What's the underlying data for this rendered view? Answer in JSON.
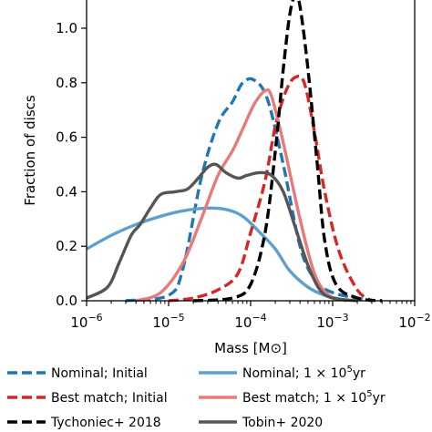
{
  "chart_data": {
    "type": "line",
    "xscale": "log",
    "xlabel": "Mass [M⊙]",
    "ylabel": "Fraction of discs",
    "xlim": [
      1e-06,
      0.01
    ],
    "ylim": [
      0,
      1.1
    ],
    "x_ticks": [
      {
        "value": 1e-06,
        "base": "10",
        "exp": "−6"
      },
      {
        "value": 1e-05,
        "base": "10",
        "exp": "−5"
      },
      {
        "value": 0.0001,
        "base": "10",
        "exp": "−4"
      },
      {
        "value": 0.001,
        "base": "10",
        "exp": "−3"
      },
      {
        "value": 0.01,
        "base": "10",
        "exp": "−2"
      }
    ],
    "y_ticks": [
      {
        "value": 0.0,
        "label": "0.0"
      },
      {
        "value": 0.2,
        "label": "0.2"
      },
      {
        "value": 0.4,
        "label": "0.4"
      },
      {
        "value": 0.6,
        "label": "0.6"
      },
      {
        "value": 0.8,
        "label": "0.8"
      },
      {
        "value": 1.0,
        "label": "1.0"
      }
    ],
    "series": [
      {
        "name": "Nominal; Initial",
        "color": "#1f77b4",
        "style": "dashed",
        "points": [
          [
            3e-06,
            0.0
          ],
          [
            1e-05,
            0.02
          ],
          [
            1.5e-05,
            0.12
          ],
          [
            2.5e-05,
            0.45
          ],
          [
            4e-05,
            0.65
          ],
          [
            6e-05,
            0.73
          ],
          [
            8e-05,
            0.8
          ],
          [
            0.00011,
            0.81
          ],
          [
            0.00016,
            0.74
          ],
          [
            0.00025,
            0.5
          ],
          [
            0.0004,
            0.2
          ],
          [
            0.0006,
            0.08
          ],
          [
            0.001,
            0.03
          ],
          [
            0.003,
            0.0
          ]
        ]
      },
      {
        "name": "Nominal; 1 × 10^5yr",
        "color": "#5da0d0",
        "style": "solid",
        "points": [
          [
            1e-06,
            0.19
          ],
          [
            2e-06,
            0.24
          ],
          [
            4e-06,
            0.28
          ],
          [
            8e-06,
            0.31
          ],
          [
            1.5e-05,
            0.33
          ],
          [
            3e-05,
            0.34
          ],
          [
            5e-05,
            0.335
          ],
          [
            8e-05,
            0.31
          ],
          [
            0.00013,
            0.25
          ],
          [
            0.0002,
            0.19
          ],
          [
            0.0003,
            0.11
          ],
          [
            0.0005,
            0.05
          ],
          [
            0.0008,
            0.02
          ],
          [
            0.0015,
            0.0
          ]
        ]
      },
      {
        "name": "Best match; Initial",
        "color": "#d62728",
        "style": "dashed",
        "points": [
          [
            1e-05,
            0.0
          ],
          [
            2e-05,
            0.01
          ],
          [
            4e-05,
            0.04
          ],
          [
            7e-05,
            0.1
          ],
          [
            0.0001,
            0.25
          ],
          [
            0.00015,
            0.44
          ],
          [
            0.0002,
            0.64
          ],
          [
            0.00027,
            0.77
          ],
          [
            0.00035,
            0.82
          ],
          [
            0.00045,
            0.8
          ],
          [
            0.0006,
            0.62
          ],
          [
            0.0008,
            0.4
          ],
          [
            0.0012,
            0.18
          ],
          [
            0.002,
            0.04
          ],
          [
            0.003,
            0.0
          ]
        ]
      },
      {
        "name": "Best match; 1 × 10^5yr",
        "color": "#e87a7a",
        "style": "solid",
        "points": [
          [
            4e-06,
            0.0
          ],
          [
            8e-06,
            0.03
          ],
          [
            1.5e-05,
            0.14
          ],
          [
            2.5e-05,
            0.3
          ],
          [
            4e-05,
            0.46
          ],
          [
            6e-05,
            0.55
          ],
          [
            8e-05,
            0.63
          ],
          [
            0.00011,
            0.72
          ],
          [
            0.00015,
            0.77
          ],
          [
            0.00018,
            0.75
          ],
          [
            0.00025,
            0.58
          ],
          [
            0.0004,
            0.3
          ],
          [
            0.0006,
            0.1
          ],
          [
            0.0009,
            0.02
          ],
          [
            0.0015,
            0.0
          ]
        ]
      },
      {
        "name": "Tychoniec+ 2018",
        "color": "#000000",
        "style": "dashed",
        "points": [
          [
            2e-05,
            0.0
          ],
          [
            6e-05,
            0.01
          ],
          [
            0.0001,
            0.06
          ],
          [
            0.00015,
            0.25
          ],
          [
            0.0002,
            0.55
          ],
          [
            0.00025,
            0.85
          ],
          [
            0.0003,
            1.05
          ],
          [
            0.00035,
            1.12
          ],
          [
            0.0004,
            1.08
          ],
          [
            0.0005,
            0.85
          ],
          [
            0.00065,
            0.5
          ],
          [
            0.0008,
            0.22
          ],
          [
            0.0011,
            0.06
          ],
          [
            0.002,
            0.01
          ],
          [
            0.004,
            0.0
          ]
        ]
      },
      {
        "name": "Tobin+ 2020",
        "color": "#555555",
        "style": "solid",
        "points": [
          [
            1e-06,
            0.01
          ],
          [
            1.8e-06,
            0.05
          ],
          [
            2.5e-06,
            0.14
          ],
          [
            3.5e-06,
            0.24
          ],
          [
            4.5e-06,
            0.28
          ],
          [
            6e-06,
            0.34
          ],
          [
            8e-06,
            0.39
          ],
          [
            1.2e-05,
            0.4
          ],
          [
            1.7e-05,
            0.41
          ],
          [
            2.3e-05,
            0.45
          ],
          [
            3e-05,
            0.49
          ],
          [
            3.8e-05,
            0.5
          ],
          [
            5e-05,
            0.47
          ],
          [
            7e-05,
            0.45
          ],
          [
            9e-05,
            0.46
          ],
          [
            0.00013,
            0.47
          ],
          [
            0.00018,
            0.46
          ],
          [
            0.00025,
            0.4
          ],
          [
            0.00035,
            0.27
          ],
          [
            0.0005,
            0.13
          ],
          [
            0.0007,
            0.04
          ],
          [
            0.001,
            0.01
          ],
          [
            0.002,
            0.0
          ]
        ]
      }
    ],
    "legend": {
      "placement": "bottom",
      "entries": [
        {
          "label": "Nominal; Initial",
          "color": "#1f77b4",
          "style": "dashed"
        },
        {
          "label": "Nominal; 1 × 10^5yr",
          "label_base": "Nominal;  1 × 10",
          "label_exp": "5",
          "label_tail": "yr",
          "color": "#5da0d0",
          "style": "solid"
        },
        {
          "label": "Best match; Initial",
          "color": "#d62728",
          "style": "dashed"
        },
        {
          "label": "Best match; 1 × 10^5yr",
          "label_base": "Best match;  1 × 10",
          "label_exp": "5",
          "label_tail": "yr",
          "color": "#e87a7a",
          "style": "solid"
        },
        {
          "label": "Tychoniec+ 2018",
          "color": "#000000",
          "style": "dashed"
        },
        {
          "label": "Tobin+ 2020",
          "color": "#555555",
          "style": "solid"
        }
      ]
    }
  }
}
